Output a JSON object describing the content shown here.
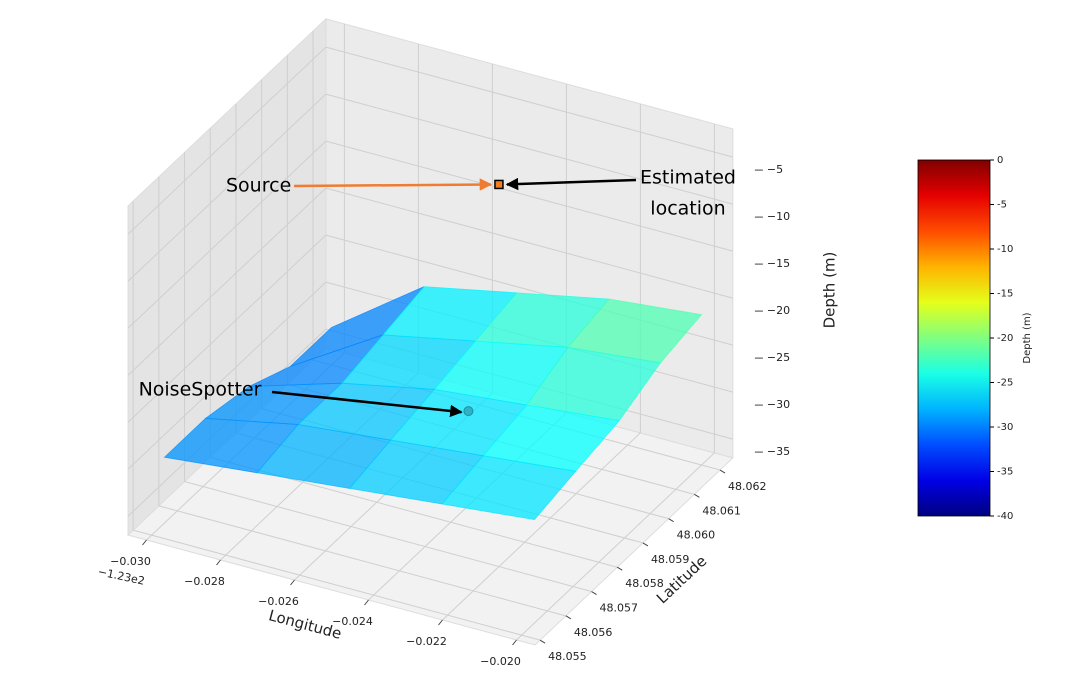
{
  "chart_data": {
    "type": "surface3d",
    "xlabel": "Longitude",
    "ylabel": "Latitude",
    "zlabel": "Depth (m)",
    "x_offset_text": "−1.23e2",
    "xlim": [
      -0.0305,
      -0.0195
    ],
    "ylim": [
      48.0548,
      48.0625
    ],
    "zlim": [
      -37,
      -2
    ],
    "xticks": [
      {
        "value": -0.03,
        "label": "−0.030"
      },
      {
        "value": -0.028,
        "label": "−0.028"
      },
      {
        "value": -0.026,
        "label": "−0.026"
      },
      {
        "value": -0.024,
        "label": "−0.024"
      },
      {
        "value": -0.022,
        "label": "−0.022"
      },
      {
        "value": -0.02,
        "label": "−0.020"
      }
    ],
    "yticks": [
      48.055,
      48.056,
      48.057,
      48.058,
      48.059,
      {
        "value": 48.06,
        "label": "48.060"
      },
      48.061,
      48.062
    ],
    "zticks": [
      {
        "value": -5,
        "label": "−5"
      },
      {
        "value": -10,
        "label": "−10"
      },
      {
        "value": -15,
        "label": "−15"
      },
      {
        "value": -20,
        "label": "−20"
      },
      {
        "value": -25,
        "label": "−25"
      },
      {
        "value": -30,
        "label": "−30"
      },
      {
        "value": -35,
        "label": "−35"
      }
    ],
    "grid": true,
    "colormap": "jet",
    "surface": {
      "lon": [
        -0.03,
        -0.0275,
        -0.025,
        -0.0225,
        -0.02
      ],
      "lat": [
        48.0555,
        48.0571,
        48.0588,
        48.0604,
        48.062
      ],
      "z": [
        [
          -30,
          -29,
          -28,
          -27,
          -26
        ],
        [
          -30,
          -28,
          -27,
          -26,
          -25
        ],
        [
          -31,
          -28,
          -26,
          -25,
          -24
        ],
        [
          -33,
          -27,
          -25,
          -23,
          -22
        ],
        [
          -33,
          -26,
          -24,
          -22,
          -21
        ]
      ]
    },
    "points": [
      {
        "lon": -0.0236,
        "lat": 48.0593,
        "depth": -4,
        "color": "#f07f1e",
        "marker": "square"
      },
      {
        "lon": -0.0238,
        "lat": 48.0584,
        "depth": -26,
        "color": "#2bb3c8",
        "marker": "circle"
      }
    ],
    "annotations": [
      {
        "text": [
          "Source"
        ],
        "point": 0,
        "color": "#ee7d31"
      },
      {
        "text": [
          "Estimated",
          "location"
        ],
        "point": 0,
        "color": "#000000"
      },
      {
        "text": [
          "NoiseSpotter"
        ],
        "point": 1,
        "color": "#000000"
      }
    ],
    "colorbar": {
      "label": "Depth (m)",
      "clim": [
        -40,
        0
      ],
      "ticks": [
        0,
        -5,
        -10,
        -15,
        -20,
        -25,
        -30,
        -35,
        -40
      ]
    }
  }
}
